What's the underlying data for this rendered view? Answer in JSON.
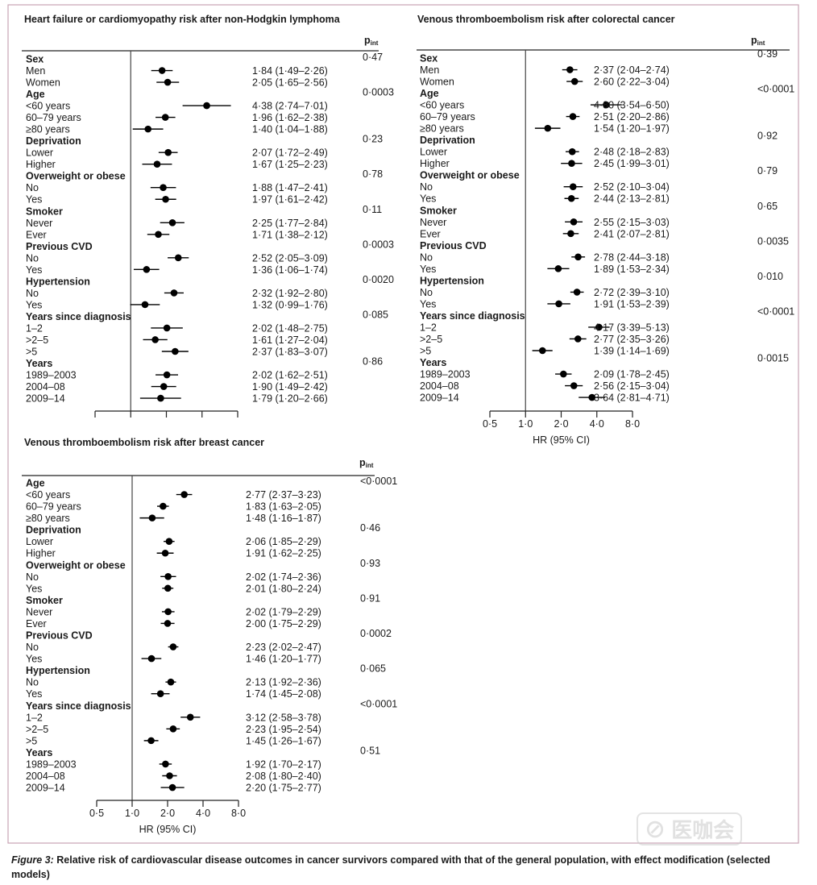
{
  "border_color": "#c9a3b3",
  "caption": {
    "label": "Figure 3:",
    "text": "Relative risk of cardiovascular disease outcomes in cancer survivors compared with that of the general population, with effect modification (selected models)"
  },
  "watermark": "医咖会",
  "chart_data": [
    {
      "type": "forest",
      "title": "Heart failure or cardiomyopathy risk after non-Hodgkin lymphoma",
      "p_header": "p",
      "p_header_sub": "int",
      "x_scale": "log",
      "xlim": [
        0.5,
        8
      ],
      "ticks": [
        0.5,
        1,
        2,
        4,
        8
      ],
      "tick_labels": [],
      "xlabel": "",
      "reference_line": 1,
      "groups": [
        {
          "name": "Sex",
          "p": "0·47",
          "rows": [
            {
              "label": "Men",
              "hr": 1.84,
              "lo": 1.49,
              "hi": 2.26
            },
            {
              "label": "Women",
              "hr": 2.05,
              "lo": 1.65,
              "hi": 2.56
            }
          ]
        },
        {
          "name": "Age",
          "p": "0·0003",
          "rows": [
            {
              "label": "<60 years",
              "hr": 4.38,
              "lo": 2.74,
              "hi": 7.01
            },
            {
              "label": "60–79 years",
              "hr": 1.96,
              "lo": 1.62,
              "hi": 2.38
            },
            {
              "label": "≥80 years",
              "hr": 1.4,
              "lo": 1.04,
              "hi": 1.88
            }
          ]
        },
        {
          "name": "Deprivation",
          "p": "0·23",
          "rows": [
            {
              "label": "Lower",
              "hr": 2.07,
              "lo": 1.72,
              "hi": 2.49
            },
            {
              "label": "Higher",
              "hr": 1.67,
              "lo": 1.25,
              "hi": 2.23
            }
          ]
        },
        {
          "name": "Overweight or obese",
          "p": "0·78",
          "rows": [
            {
              "label": "No",
              "hr": 1.88,
              "lo": 1.47,
              "hi": 2.41
            },
            {
              "label": "Yes",
              "hr": 1.97,
              "lo": 1.61,
              "hi": 2.42
            }
          ]
        },
        {
          "name": "Smoker",
          "p": "0·11",
          "rows": [
            {
              "label": "Never",
              "hr": 2.25,
              "lo": 1.77,
              "hi": 2.84
            },
            {
              "label": "Ever",
              "hr": 1.71,
              "lo": 1.38,
              "hi": 2.12
            }
          ]
        },
        {
          "name": "Previous CVD",
          "p": "0·0003",
          "rows": [
            {
              "label": "No",
              "hr": 2.52,
              "lo": 2.05,
              "hi": 3.09
            },
            {
              "label": "Yes",
              "hr": 1.36,
              "lo": 1.06,
              "hi": 1.74
            }
          ]
        },
        {
          "name": "Hypertension",
          "p": "0·0020",
          "rows": [
            {
              "label": "No",
              "hr": 2.32,
              "lo": 1.92,
              "hi": 2.8
            },
            {
              "label": "Yes",
              "hr": 1.32,
              "lo": 0.99,
              "hi": 1.76
            }
          ]
        },
        {
          "name": "Years since diagnosis",
          "p": "0·085",
          "rows": [
            {
              "label": "1–2",
              "hr": 2.02,
              "lo": 1.48,
              "hi": 2.75
            },
            {
              "label": ">2–5",
              "hr": 1.61,
              "lo": 1.27,
              "hi": 2.04
            },
            {
              "label": ">5",
              "hr": 2.37,
              "lo": 1.83,
              "hi": 3.07
            }
          ]
        },
        {
          "name": "Years",
          "p": "0·86",
          "rows": [
            {
              "label": "1989–2003",
              "hr": 2.02,
              "lo": 1.62,
              "hi": 2.51
            },
            {
              "label": "2004–08",
              "hr": 1.9,
              "lo": 1.49,
              "hi": 2.42
            },
            {
              "label": "2009–14",
              "hr": 1.79,
              "lo": 1.2,
              "hi": 2.66
            }
          ]
        }
      ]
    },
    {
      "type": "forest",
      "title": "Venous thromboembolism risk after colorectal cancer",
      "p_header": "p",
      "p_header_sub": "int",
      "x_scale": "log",
      "xlim": [
        0.5,
        8
      ],
      "ticks": [
        0.5,
        1,
        2,
        4,
        8
      ],
      "tick_labels": [
        "0·5",
        "1·0",
        "2·0",
        "4·0",
        "8·0"
      ],
      "xlabel": "HR (95% CI)",
      "reference_line": 1,
      "groups": [
        {
          "name": "Sex",
          "p": "0·39",
          "rows": [
            {
              "label": "Men",
              "hr": 2.37,
              "lo": 2.04,
              "hi": 2.74
            },
            {
              "label": "Women",
              "hr": 2.6,
              "lo": 2.22,
              "hi": 3.04
            }
          ]
        },
        {
          "name": "Age",
          "p": "<0·0001",
          "rows": [
            {
              "label": "<60 years",
              "hr": 4.8,
              "lo": 3.54,
              "hi": 6.5
            },
            {
              "label": "60–79 years",
              "hr": 2.51,
              "lo": 2.2,
              "hi": 2.86
            },
            {
              "label": "≥80 years",
              "hr": 1.54,
              "lo": 1.2,
              "hi": 1.97
            }
          ]
        },
        {
          "name": "Deprivation",
          "p": "0·92",
          "rows": [
            {
              "label": "Lower",
              "hr": 2.48,
              "lo": 2.18,
              "hi": 2.83
            },
            {
              "label": "Higher",
              "hr": 2.45,
              "lo": 1.99,
              "hi": 3.01
            }
          ]
        },
        {
          "name": "Overweight or obese",
          "p": "0·79",
          "rows": [
            {
              "label": "No",
              "hr": 2.52,
              "lo": 2.1,
              "hi": 3.04
            },
            {
              "label": "Yes",
              "hr": 2.44,
              "lo": 2.13,
              "hi": 2.81
            }
          ]
        },
        {
          "name": "Smoker",
          "p": "0·65",
          "rows": [
            {
              "label": "Never",
              "hr": 2.55,
              "lo": 2.15,
              "hi": 3.03
            },
            {
              "label": "Ever",
              "hr": 2.41,
              "lo": 2.07,
              "hi": 2.81
            }
          ]
        },
        {
          "name": "Previous CVD",
          "p": "0·0035",
          "rows": [
            {
              "label": "No",
              "hr": 2.78,
              "lo": 2.44,
              "hi": 3.18
            },
            {
              "label": "Yes",
              "hr": 1.89,
              "lo": 1.53,
              "hi": 2.34
            }
          ]
        },
        {
          "name": "Hypertension",
          "p": "0·010",
          "rows": [
            {
              "label": "No",
              "hr": 2.72,
              "lo": 2.39,
              "hi": 3.1
            },
            {
              "label": "Yes",
              "hr": 1.91,
              "lo": 1.53,
              "hi": 2.39
            }
          ]
        },
        {
          "name": "Years since diagnosis",
          "p": "<0·0001",
          "rows": [
            {
              "label": "1–2",
              "hr": 4.17,
              "lo": 3.39,
              "hi": 5.13
            },
            {
              "label": ">2–5",
              "hr": 2.77,
              "lo": 2.35,
              "hi": 3.26
            },
            {
              "label": ">5",
              "hr": 1.39,
              "lo": 1.14,
              "hi": 1.69
            }
          ]
        },
        {
          "name": "Years",
          "p": "0·0015",
          "rows": [
            {
              "label": "1989–2003",
              "hr": 2.09,
              "lo": 1.78,
              "hi": 2.45
            },
            {
              "label": "2004–08",
              "hr": 2.56,
              "lo": 2.15,
              "hi": 3.04
            },
            {
              "label": "2009–14",
              "hr": 3.64,
              "lo": 2.81,
              "hi": 4.71
            }
          ]
        }
      ]
    },
    {
      "type": "forest",
      "title": "Venous thromboembolism risk after breast cancer",
      "p_header": "p",
      "p_header_sub": "int",
      "x_scale": "log",
      "xlim": [
        0.5,
        8
      ],
      "ticks": [
        0.5,
        1,
        2,
        4,
        8
      ],
      "tick_labels": [
        "0·5",
        "1·0",
        "2·0",
        "4·0",
        "8·0"
      ],
      "xlabel": "HR (95% CI)",
      "reference_line": 1,
      "groups": [
        {
          "name": "Age",
          "p": "<0·0001",
          "rows": [
            {
              "label": "<60 years",
              "hr": 2.77,
              "lo": 2.37,
              "hi": 3.23
            },
            {
              "label": "60–79 years",
              "hr": 1.83,
              "lo": 1.63,
              "hi": 2.05
            },
            {
              "label": "≥80 years",
              "hr": 1.48,
              "lo": 1.16,
              "hi": 1.87
            }
          ]
        },
        {
          "name": "Deprivation",
          "p": "0·46",
          "rows": [
            {
              "label": "Lower",
              "hr": 2.06,
              "lo": 1.85,
              "hi": 2.29
            },
            {
              "label": "Higher",
              "hr": 1.91,
              "lo": 1.62,
              "hi": 2.25
            }
          ]
        },
        {
          "name": "Overweight or obese",
          "p": "0·93",
          "rows": [
            {
              "label": "No",
              "hr": 2.02,
              "lo": 1.74,
              "hi": 2.36
            },
            {
              "label": "Yes",
              "hr": 2.01,
              "lo": 1.8,
              "hi": 2.24
            }
          ]
        },
        {
          "name": "Smoker",
          "p": "0·91",
          "rows": [
            {
              "label": "Never",
              "hr": 2.02,
              "lo": 1.79,
              "hi": 2.29
            },
            {
              "label": "Ever",
              "hr": 2.0,
              "lo": 1.75,
              "hi": 2.29
            }
          ]
        },
        {
          "name": "Previous CVD",
          "p": "0·0002",
          "rows": [
            {
              "label": "No",
              "hr": 2.23,
              "lo": 2.02,
              "hi": 2.47
            },
            {
              "label": "Yes",
              "hr": 1.46,
              "lo": 1.2,
              "hi": 1.77
            }
          ]
        },
        {
          "name": "Hypertension",
          "p": "0·065",
          "rows": [
            {
              "label": "No",
              "hr": 2.13,
              "lo": 1.92,
              "hi": 2.36
            },
            {
              "label": "Yes",
              "hr": 1.74,
              "lo": 1.45,
              "hi": 2.08
            }
          ]
        },
        {
          "name": "Years since diagnosis",
          "p": "<0·0001",
          "rows": [
            {
              "label": "1–2",
              "hr": 3.12,
              "lo": 2.58,
              "hi": 3.78
            },
            {
              "label": ">2–5",
              "hr": 2.23,
              "lo": 1.95,
              "hi": 2.54
            },
            {
              "label": ">5",
              "hr": 1.45,
              "lo": 1.26,
              "hi": 1.67
            }
          ]
        },
        {
          "name": "Years",
          "p": "0·51",
          "rows": [
            {
              "label": "1989–2003",
              "hr": 1.92,
              "lo": 1.7,
              "hi": 2.17
            },
            {
              "label": "2004–08",
              "hr": 2.08,
              "lo": 1.8,
              "hi": 2.4
            },
            {
              "label": "2009–14",
              "hr": 2.2,
              "lo": 1.75,
              "hi": 2.77
            }
          ]
        }
      ]
    }
  ]
}
